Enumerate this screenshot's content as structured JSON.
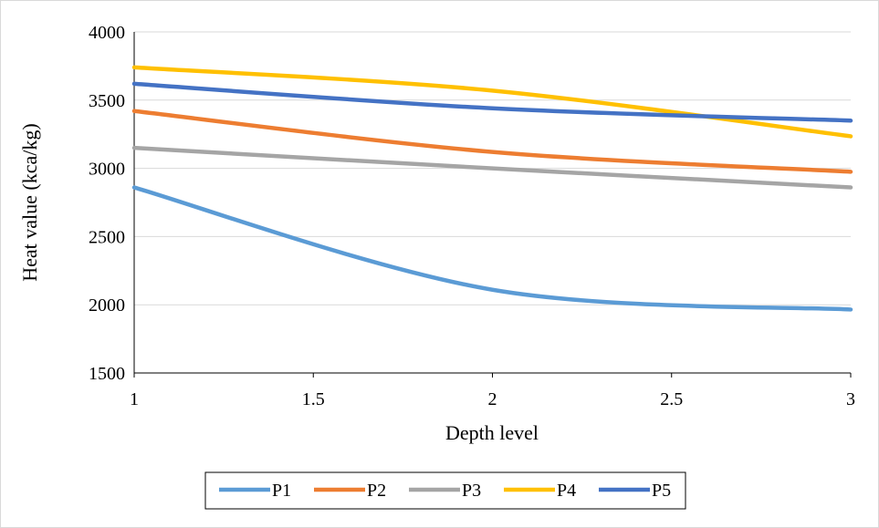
{
  "chart_data": {
    "type": "line",
    "title": "",
    "xlabel": "Depth level",
    "ylabel": "Heat value (kca/kg)",
    "xlim": [
      1,
      3
    ],
    "ylim": [
      1500,
      4000
    ],
    "x_ticks": [
      "1",
      "1.5",
      "2",
      "2.5",
      "3"
    ],
    "x_tick_values": [
      1,
      1.5,
      2,
      2.5,
      3
    ],
    "y_ticks": [
      "4000",
      "3500",
      "3000",
      "2500",
      "2000",
      "1500"
    ],
    "y_tick_values": [
      4000,
      3500,
      3000,
      2500,
      2000,
      1500
    ],
    "grid": "horizontal",
    "legend_position": "bottom",
    "smooth": true,
    "x": [
      1,
      2,
      3
    ],
    "series": [
      {
        "name": "P1",
        "color": "#5B9BD5",
        "values": [
          2860,
          2110,
          1965
        ]
      },
      {
        "name": "P2",
        "color": "#ED7D31",
        "values": [
          3420,
          3120,
          2975
        ]
      },
      {
        "name": "P3",
        "color": "#A5A5A5",
        "values": [
          3150,
          3000,
          2860
        ]
      },
      {
        "name": "P4",
        "color": "#FFC000",
        "values": [
          3740,
          3570,
          3235
        ]
      },
      {
        "name": "P5",
        "color": "#4472C4",
        "values": [
          3620,
          3440,
          3350
        ]
      }
    ]
  }
}
